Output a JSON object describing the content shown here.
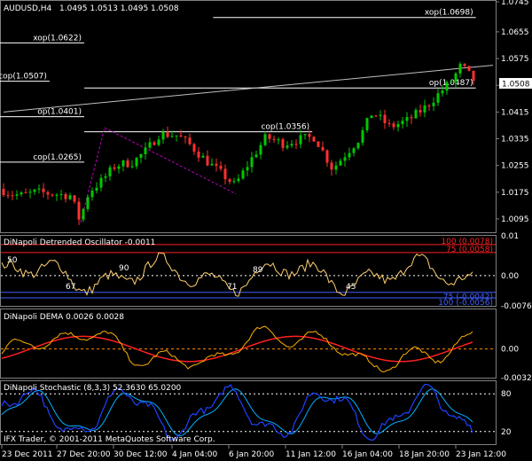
{
  "colors": {
    "background": "#000000",
    "frame": "#808080",
    "bull": "#00c800",
    "bear": "#ff3030",
    "hline": "#ffffff",
    "trend": "#c0c0c0",
    "zigzag": "#c000c0",
    "osc": "#ffd070",
    "osc_upper_band": "#ff2020",
    "osc_lower_band": "#4060ff",
    "zero": "#ff8c00",
    "dema_fast": "#ffb000",
    "dema_slow": "#ff2020",
    "stoch_k": "#2040ff",
    "stoch_d": "#00b0ff"
  },
  "header": {
    "symbol": "AUDUSD,H4",
    "ohlc": "1.0495 1.0513 1.0495 1.0508",
    "copyright": "IFX Trader, © 2001-2011 MetaQuotes Software Corp."
  },
  "price_panel": {
    "ylim": [
      1.0055,
      1.0745
    ],
    "y_ticks": [
      "1.0745",
      "1.0655",
      "1.0575",
      "1.0495",
      "1.0415",
      "1.0335",
      "1.0255",
      "1.0175",
      "1.0095"
    ],
    "current_price": "1.0508",
    "levels": [
      {
        "label": "xop(1.0698)",
        "value": 1.0698
      },
      {
        "label": "xop(1.0622)",
        "value": 1.0622
      },
      {
        "label": "cop(1.0507)",
        "value": 1.0507
      },
      {
        "label": "op(1.0487)",
        "value": 1.0487
      },
      {
        "label": "op(1.0401)",
        "value": 1.0401
      },
      {
        "label": "cop(1.0356)",
        "value": 1.0356
      },
      {
        "label": "cop(1.0265)",
        "value": 1.0265
      }
    ]
  },
  "chart_data": [
    {
      "type": "candlestick",
      "title": "AUDUSD,H4 1.0495 1.0513 1.0495 1.0508",
      "x_ticks": [
        "23 Dec 2011",
        "27 Dec 20:00",
        "30 Dec 12:00",
        "4 Jan 04:00",
        "6 Jan 20:00",
        "11 Jan 12:00",
        "16 Jan 04:00",
        "18 Jan 20:00",
        "23 Jan 12:00"
      ],
      "ylim": [
        1.0055,
        1.0745
      ],
      "last_bar": {
        "open": 1.0495,
        "high": 1.0513,
        "low": 1.0495,
        "close": 1.0508
      }
    },
    {
      "type": "line",
      "title": "DiNapoli Detrended Oscillator -0.0011",
      "ylim": [
        -0.0076,
        0.01
      ],
      "y_ticks": [
        "0.01",
        "0.00",
        "-0.0076"
      ],
      "band_labels": [
        "100 (0.0078)",
        "75 (0.0058)",
        "75 (-0.0042)",
        "100 (-0.0056)"
      ],
      "bands": [
        0.0078,
        0.0058,
        -0.0042,
        -0.0056
      ],
      "annotations": [
        "50",
        "67",
        "90",
        "89",
        "71",
        "45"
      ]
    },
    {
      "type": "line",
      "title": "DiNapoli DEMA 0.0026 0.0028",
      "ylim": [
        -0.0032,
        0.0044
      ],
      "y_ticks": [
        "0.00",
        "-0.0032"
      ],
      "series": [
        {
          "values_last": 0.0026
        },
        {
          "values_last": 0.0028
        }
      ]
    },
    {
      "type": "line",
      "title": "DiNapoli Stochastic (8,3,3) 52.3630 65.0200",
      "ylim": [
        0,
        100
      ],
      "y_ticks": [
        "80",
        "20"
      ],
      "series": [
        {
          "values_last": 52.363
        },
        {
          "values_last": 65.02
        }
      ]
    }
  ]
}
